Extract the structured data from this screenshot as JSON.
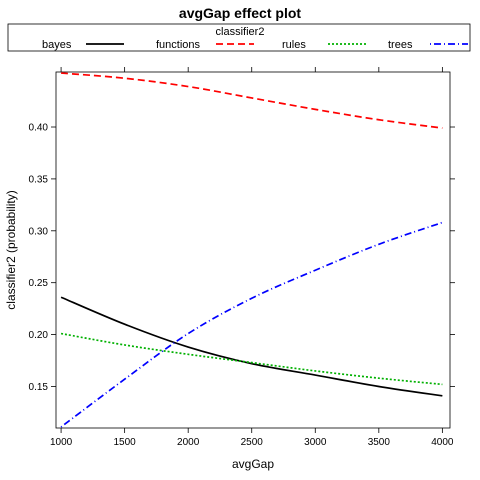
{
  "chart_data": {
    "type": "line",
    "title": "avgGap effect plot",
    "xlabel": "avgGap",
    "ylabel": "classifier2 (probability)",
    "xlim": [
      960,
      4060
    ],
    "ylim": [
      0.11,
      0.453
    ],
    "x_ticks": [
      1000,
      1500,
      2000,
      2500,
      3000,
      3500,
      4000
    ],
    "x_tick_labels": [
      "1000",
      "1500",
      "2000",
      "2500",
      "3000",
      "3500",
      "4000"
    ],
    "y_ticks": [
      0.15,
      0.2,
      0.25,
      0.3,
      0.35,
      0.4
    ],
    "y_tick_labels": [
      "0.15",
      "0.20",
      "0.25",
      "0.30",
      "0.35",
      "0.40"
    ],
    "legend": {
      "title": "classifier2",
      "placement": "top"
    },
    "x": [
      1000,
      1500,
      2000,
      2500,
      3000,
      3500,
      4000
    ],
    "series": [
      {
        "name": "bayes",
        "color": "#000000",
        "dash": "solid",
        "values": [
          0.236,
          0.21,
          0.188,
          0.172,
          0.161,
          0.15,
          0.141
        ]
      },
      {
        "name": "functions",
        "color": "#ff0000",
        "dash": "dashed",
        "values": [
          0.452,
          0.447,
          0.439,
          0.428,
          0.417,
          0.407,
          0.399
        ]
      },
      {
        "name": "rules",
        "color": "#00b000",
        "dash": "dotted",
        "values": [
          0.201,
          0.19,
          0.181,
          0.173,
          0.165,
          0.158,
          0.152
        ]
      },
      {
        "name": "trees",
        "color": "#0000ff",
        "dash": "dotdash",
        "values": [
          0.111,
          0.157,
          0.201,
          0.235,
          0.262,
          0.287,
          0.308
        ]
      }
    ]
  }
}
